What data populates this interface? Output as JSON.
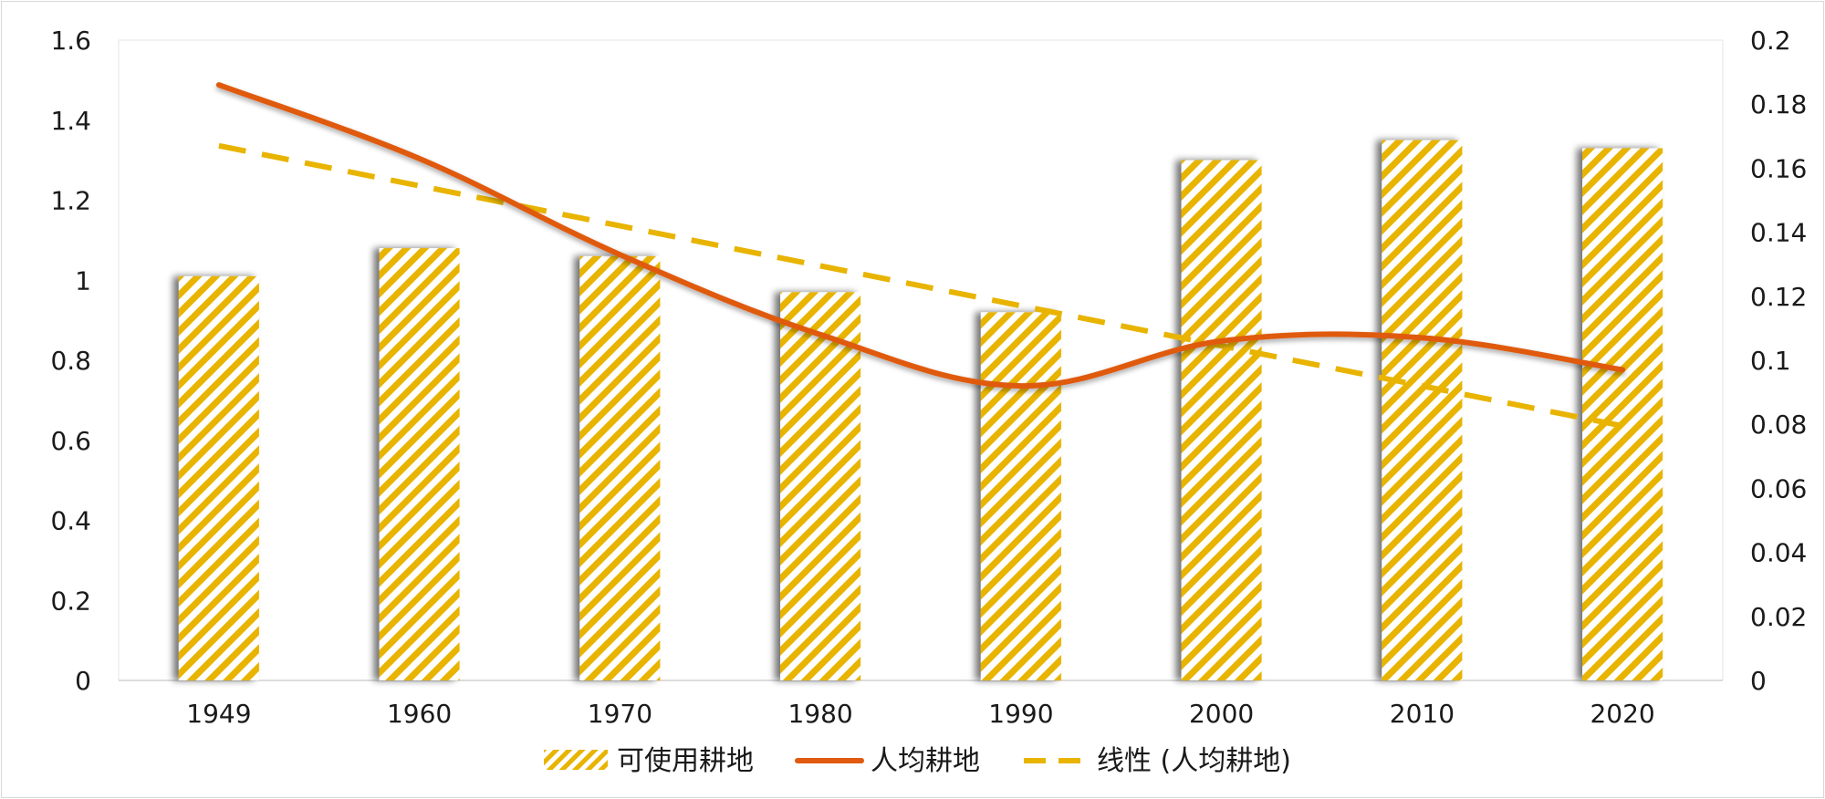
{
  "chart_data": {
    "type": "bar",
    "categories": [
      "1949",
      "1960",
      "1970",
      "1980",
      "1990",
      "2000",
      "2010",
      "2020"
    ],
    "series": [
      {
        "name": "可使用耕地",
        "type": "bar",
        "axis": "left",
        "values": [
          1.01,
          1.08,
          1.06,
          0.97,
          0.92,
          1.3,
          1.35,
          1.33
        ],
        "color": "#e8b400"
      },
      {
        "name": "人均耕地",
        "type": "line",
        "axis": "right",
        "values": [
          0.186,
          0.163,
          0.133,
          0.108,
          0.092,
          0.106,
          0.107,
          0.097
        ],
        "color": "#e05a10"
      },
      {
        "name": "线性 (人均耕地)",
        "type": "line",
        "style": "dashed",
        "axis": "right",
        "values": [
          0.167,
          0.1545,
          0.142,
          0.1295,
          0.117,
          0.1045,
          0.092,
          0.0795
        ],
        "color": "#e8b400"
      }
    ],
    "y_left": {
      "min": 0,
      "max": 1.6,
      "ticks": [
        "0",
        "0.2",
        "0.4",
        "0.6",
        "0.8",
        "1",
        "1.2",
        "1.4",
        "1.6"
      ]
    },
    "y_right": {
      "min": 0,
      "max": 0.2,
      "ticks": [
        "0",
        "0.02",
        "0.04",
        "0.06",
        "0.08",
        "0.1",
        "0.12",
        "0.14",
        "0.16",
        "0.18",
        "0.2"
      ]
    },
    "grid": false,
    "legend_position": "bottom",
    "title": "",
    "xlabel": "",
    "ylabel": ""
  }
}
